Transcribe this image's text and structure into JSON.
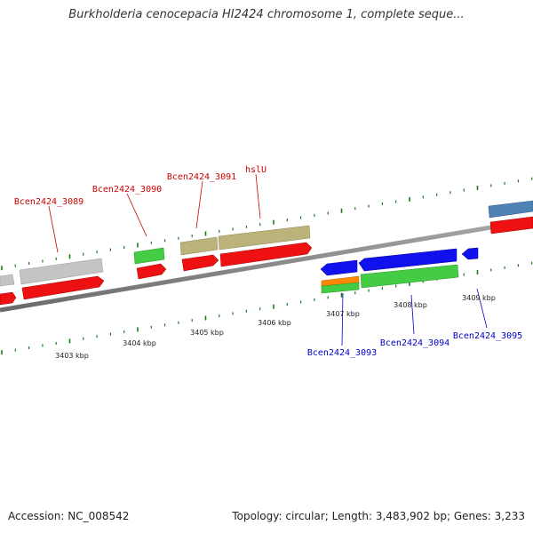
{
  "title": "Burkholderia cenocepacia HI2424 chromosome 1, complete seque...",
  "footer": {
    "accession": "Accession: NC_008542",
    "summary": "Topology: circular; Length: 3,483,902 bp; Genes: 3,233"
  },
  "colors": {
    "backbone": "#808080",
    "forward_label": "#cc0000",
    "reverse_label": "#0000cc",
    "tick": "#1a7a1a",
    "cds": "#ee1111",
    "gene_grey": "#c4c4c4",
    "gene_green": "#44cc44",
    "gene_olive": "#bbb37a",
    "gene_blue": "#1111ee",
    "gene_orange": "#ff8800",
    "gene_steel": "#4f82b4"
  },
  "scale_labels": [
    "3403 kbp",
    "3404 kbp",
    "3405 kbp",
    "3406 kbp",
    "3407 kbp",
    "3408 kbp",
    "3409 kbp"
  ],
  "forward_labels": [
    "Bcen2424_3089",
    "Bcen2424_3090",
    "Bcen2424_3091",
    "hslU"
  ],
  "reverse_labels": [
    "Bcen2424_3093",
    "Bcen2424_3094",
    "Bcen2424_3095"
  ]
}
